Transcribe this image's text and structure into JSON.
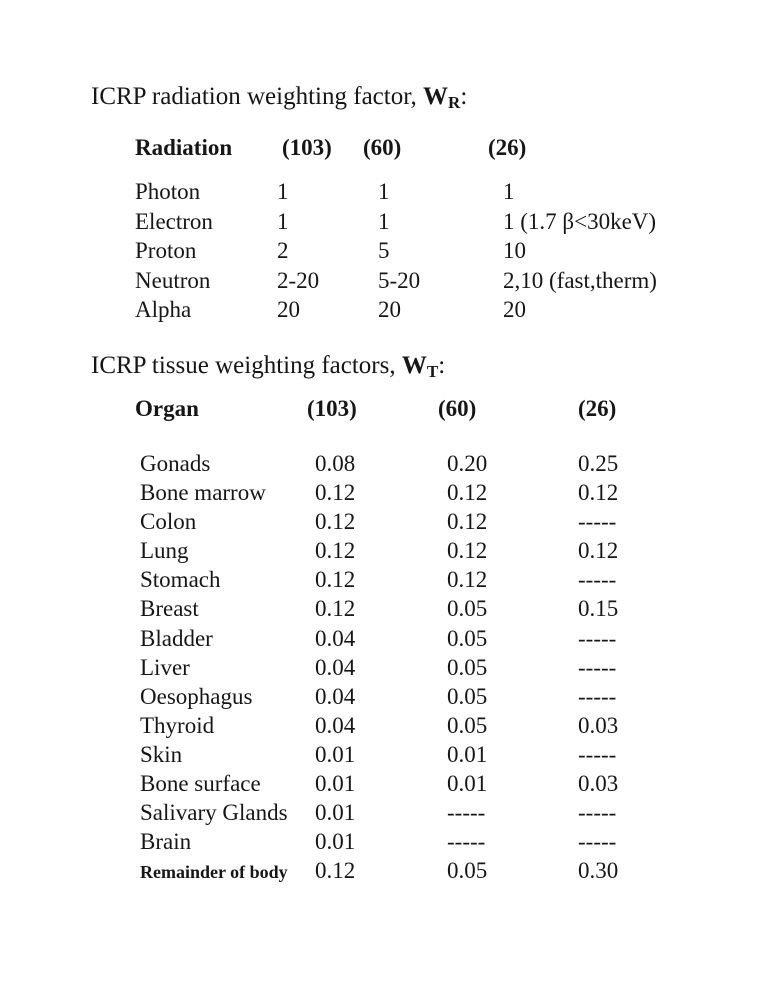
{
  "page": {
    "background": "#ffffff",
    "ink_color": "#161616"
  },
  "radiation_section": {
    "title_text": "ICRP radiation weighting factor,",
    "symbol": "W",
    "symbol_subscript": "R",
    "title_colon": ":",
    "headers": [
      "Radiation",
      "(103)",
      "(60)",
      "(26)"
    ],
    "rows": [
      {
        "label": "Photon",
        "icrp103": "1",
        "icrp60": "1",
        "icrp26": "1"
      },
      {
        "label": "Electron",
        "icrp103": "1",
        "icrp60": "1",
        "icrp26": "1 (1.7 β<30keV)"
      },
      {
        "label": "Proton",
        "icrp103": "2",
        "icrp60": "5",
        "icrp26": "10"
      },
      {
        "label": "Neutron",
        "icrp103": "2-20",
        "icrp60": "5-20",
        "icrp26": "2,10 (fast,therm)"
      },
      {
        "label": "Alpha",
        "icrp103": "20",
        "icrp60": "20",
        "icrp26": "20"
      }
    ]
  },
  "tissue_section": {
    "title_text": "ICRP tissue weighting factors,",
    "symbol": "W",
    "symbol_subscript": "T",
    "title_colon": ":",
    "headers": [
      "Organ",
      "(103)",
      "(60)",
      "(26)"
    ],
    "rows": [
      {
        "label": "Gonads",
        "icrp103": "0.08",
        "icrp60": "0.20",
        "icrp26": "0.25"
      },
      {
        "label": "Bone marrow",
        "icrp103": "0.12",
        "icrp60": "0.12",
        "icrp26": "0.12"
      },
      {
        "label": "Colon",
        "icrp103": "0.12",
        "icrp60": "0.12",
        "icrp26": "-----"
      },
      {
        "label": "Lung",
        "icrp103": "0.12",
        "icrp60": "0.12",
        "icrp26": "0.12"
      },
      {
        "label": "Stomach",
        "icrp103": "0.12",
        "icrp60": "0.12",
        "icrp26": "-----"
      },
      {
        "label": "Breast",
        "icrp103": "0.12",
        "icrp60": "0.05",
        "icrp26": "0.15"
      },
      {
        "label": "Bladder",
        "icrp103": "0.04",
        "icrp60": "0.05",
        "icrp26": "-----"
      },
      {
        "label": "Liver",
        "icrp103": "0.04",
        "icrp60": "0.05",
        "icrp26": "-----"
      },
      {
        "label": "Oesophagus",
        "icrp103": "0.04",
        "icrp60": "0.05",
        "icrp26": "-----"
      },
      {
        "label": "Thyroid",
        "icrp103": "0.04",
        "icrp60": "0.05",
        "icrp26": "0.03"
      },
      {
        "label": "Skin",
        "icrp103": "0.01",
        "icrp60": "0.01",
        "icrp26": "-----"
      },
      {
        "label": "Bone surface",
        "icrp103": "0.01",
        "icrp60": "0.01",
        "icrp26": "0.03"
      },
      {
        "label": "Salivary Glands",
        "icrp103": "0.01",
        "icrp60": "-----",
        "icrp26": "-----"
      },
      {
        "label": "Brain",
        "icrp103": "0.01",
        "icrp60": "-----",
        "icrp26": "-----"
      },
      {
        "label": "Remainder of body",
        "icrp103": "0.12",
        "icrp60": "0.05",
        "icrp26": "0.30"
      }
    ]
  }
}
